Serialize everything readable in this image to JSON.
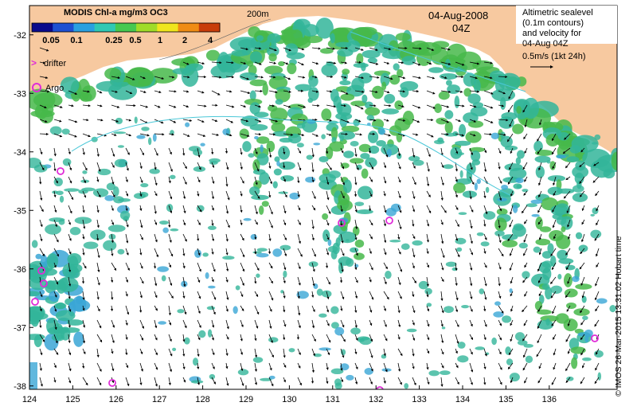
{
  "product": "MODIS Chl-a mg/m3 OC3",
  "colorbar": {
    "ticks": [
      "0.05",
      "0.1",
      "0.25",
      "0.5",
      "1",
      "2",
      "4"
    ],
    "colors": [
      "#0a0a8c",
      "#1e50d2",
      "#2aa0e0",
      "#30c8b4",
      "#46c850",
      "#a0dc28",
      "#f0e61e",
      "#f08c14",
      "#c83c0a"
    ]
  },
  "contour_label": "200m",
  "date": "04-Aug-2008",
  "time": "04Z",
  "altimetry_note": [
    "Altimetric sealevel",
    "(0.1m contours)",
    "and velocity for",
    "04-Aug 04Z"
  ],
  "velocity_scale": "0.5m/s (1kt 24h)",
  "legend": {
    "drifter": "drifter",
    "argo": "Argo"
  },
  "x_axis_ticks": [
    "124",
    "125",
    "126",
    "127",
    "128",
    "129",
    "130",
    "131",
    "132",
    "133",
    "134",
    "135",
    "136"
  ],
  "y_axis_ticks": [
    "-32",
    "-33",
    "-34",
    "-35",
    "-36",
    "-37",
    "-38"
  ],
  "credit": "© IMOS 26-Mar-2015 13:31:02 Hobart time",
  "colors": {
    "land": "#f7c9a0",
    "chl_green": "#46b84a",
    "chl_teal": "#33b59a",
    "chl_cyan": "#3aa6d6",
    "argo_marker": "#e02cd8",
    "vector": "#000000"
  }
}
